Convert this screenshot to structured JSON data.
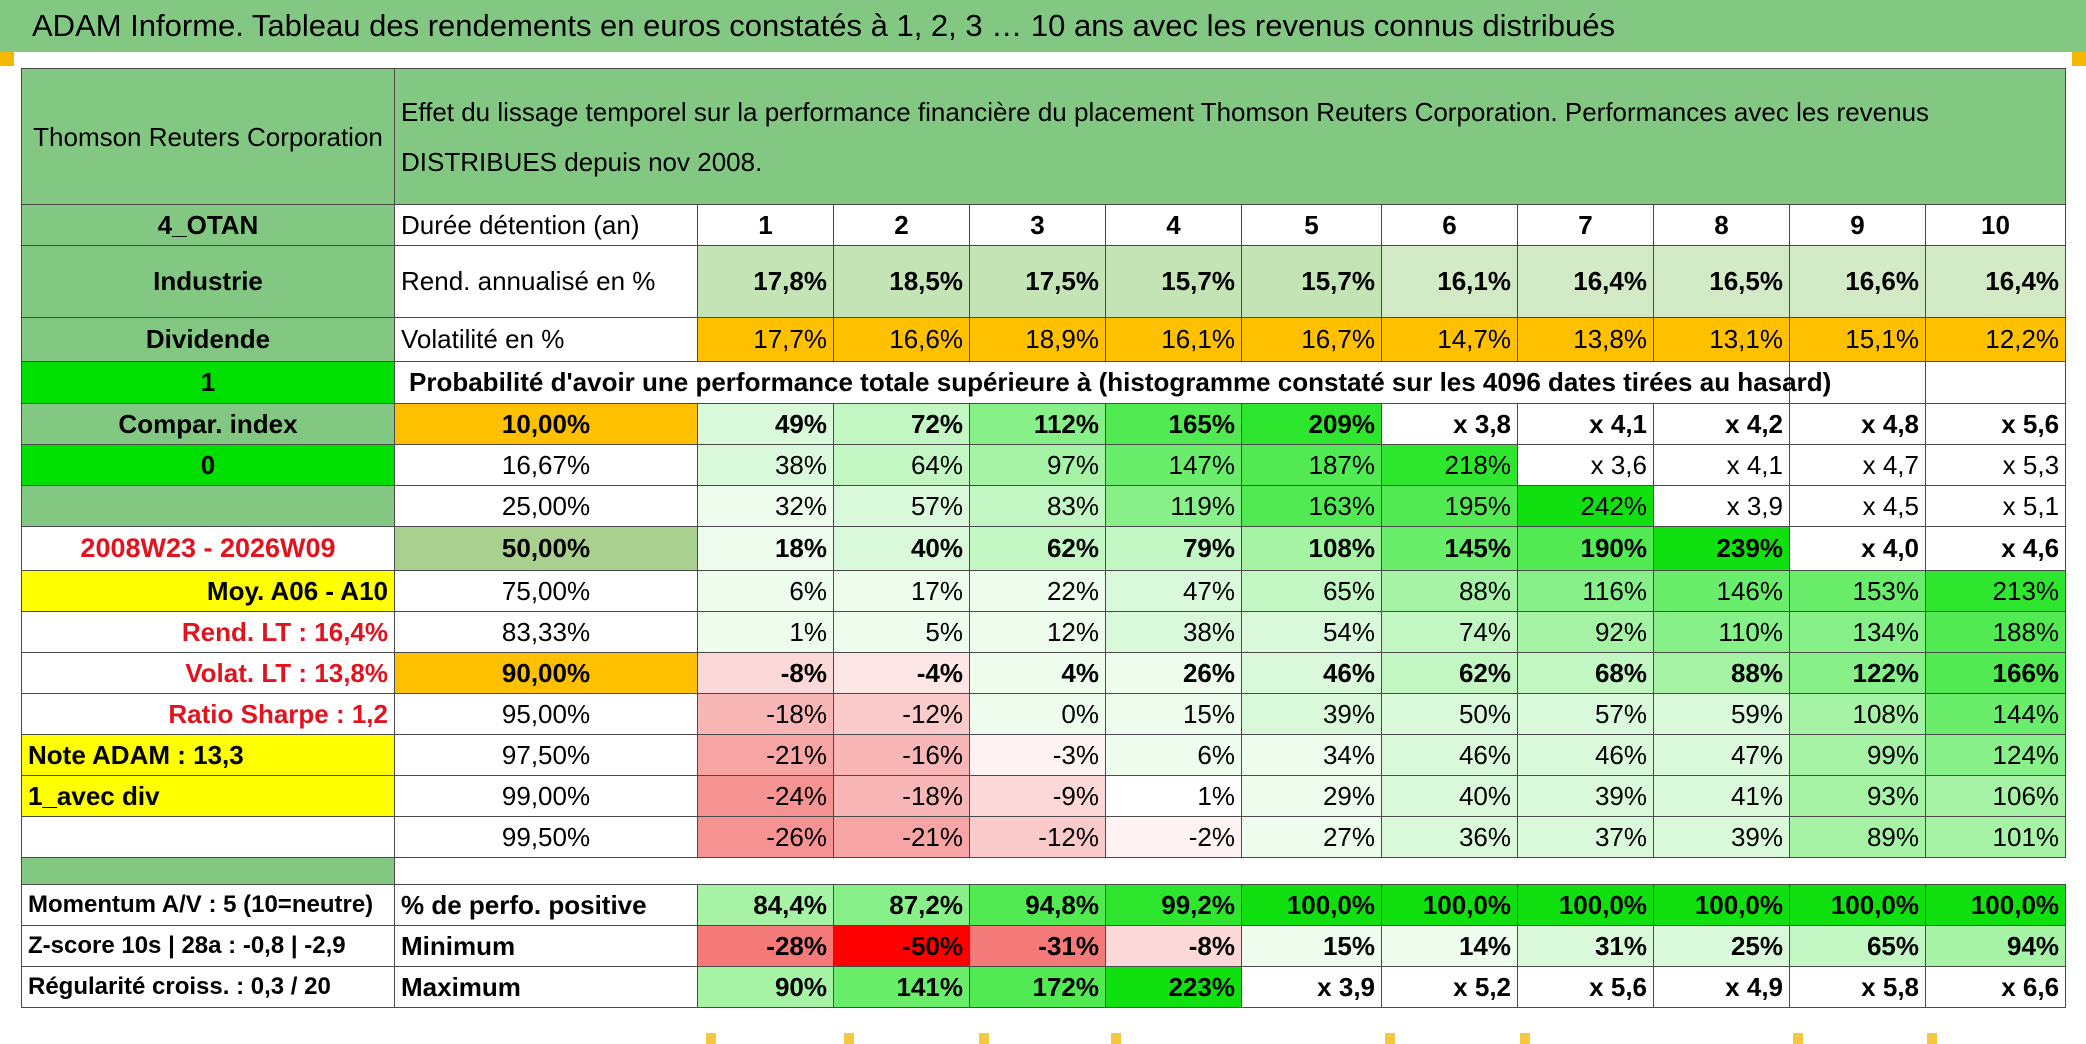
{
  "title": "ADAM Informe. Tableau des rendements en euros constatés à 1, 2, 3 … 10 ans avec les revenus connus distribués",
  "header": {
    "company": "Thomson Reuters Corporation",
    "description": "Effet du lissage temporel sur la performance financière du placement Thomson Reuters Corporation. Performances avec les revenus DISTRIBUES depuis nov 2008."
  },
  "years": [
    "1",
    "2",
    "3",
    "4",
    "5",
    "6",
    "7",
    "8",
    "9",
    "10"
  ],
  "meta_rows": [
    {
      "left": "4_OTAN",
      "label": "Durée détention (an)"
    },
    {
      "left": "Industrie",
      "label": "Rend. annualisé en %",
      "values": [
        "17,8%",
        "18,5%",
        "17,5%",
        "15,7%",
        "15,7%",
        "16,1%",
        "16,4%",
        "16,5%",
        "16,6%",
        "16,4%"
      ]
    },
    {
      "left": "Dividende",
      "label": "Volatilité en %",
      "values": [
        "17,7%",
        "16,6%",
        "18,9%",
        "16,1%",
        "16,7%",
        "14,7%",
        "13,8%",
        "13,1%",
        "15,1%",
        "12,2%"
      ]
    }
  ],
  "prob_row": {
    "left": "1",
    "label": "Probabilité d'avoir une performance totale supérieure à (histogramme constaté sur les 4096 dates tirées au hasard)"
  },
  "prob_rows": [
    {
      "left": "Compar. index",
      "pct": "10,00%",
      "values": [
        "49%",
        "72%",
        "112%",
        "165%",
        "209%",
        "x 3,8",
        "x 4,1",
        "x 4,2",
        "x 4,8",
        "x 5,6"
      ]
    },
    {
      "left": "0",
      "pct": "16,67%",
      "values": [
        "38%",
        "64%",
        "97%",
        "147%",
        "187%",
        "218%",
        "x 3,6",
        "x 4,1",
        "x 4,7",
        "x 5,3"
      ]
    },
    {
      "left": "",
      "pct": "25,00%",
      "values": [
        "32%",
        "57%",
        "83%",
        "119%",
        "163%",
        "195%",
        "242%",
        "x 3,9",
        "x 4,5",
        "x 5,1"
      ]
    },
    {
      "left": "2008W23 - 2026W09",
      "pct": "50,00%",
      "values": [
        "18%",
        "40%",
        "62%",
        "79%",
        "108%",
        "145%",
        "190%",
        "239%",
        "x 4,0",
        "x 4,6"
      ]
    },
    {
      "left": "Moy. A06 - A10",
      "pct": "75,00%",
      "values": [
        "6%",
        "17%",
        "22%",
        "47%",
        "65%",
        "88%",
        "116%",
        "146%",
        "153%",
        "213%"
      ]
    },
    {
      "left": "Rend. LT :   16,4%",
      "pct": "83,33%",
      "values": [
        "1%",
        "5%",
        "12%",
        "38%",
        "54%",
        "74%",
        "92%",
        "110%",
        "134%",
        "188%"
      ]
    },
    {
      "left": "Volat. LT :   13,8%",
      "pct": "90,00%",
      "values": [
        "-8%",
        "-4%",
        "4%",
        "26%",
        "46%",
        "62%",
        "68%",
        "88%",
        "122%",
        "166%"
      ]
    },
    {
      "left": "Ratio Sharpe :    1,2",
      "pct": "95,00%",
      "values": [
        "-18%",
        "-12%",
        "0%",
        "15%",
        "39%",
        "50%",
        "57%",
        "59%",
        "108%",
        "144%"
      ]
    },
    {
      "left": "Note ADAM : 13,3",
      "pct": "97,50%",
      "values": [
        "-21%",
        "-16%",
        "-3%",
        "6%",
        "34%",
        "46%",
        "46%",
        "47%",
        "99%",
        "124%"
      ]
    },
    {
      "left": "1_avec div",
      "pct": "99,00%",
      "values": [
        "-24%",
        "-18%",
        "-9%",
        "1%",
        "29%",
        "40%",
        "39%",
        "41%",
        "93%",
        "106%"
      ]
    },
    {
      "left": "",
      "pct": "99,50%",
      "values": [
        "-26%",
        "-21%",
        "-12%",
        "-2%",
        "27%",
        "36%",
        "37%",
        "39%",
        "89%",
        "101%"
      ]
    }
  ],
  "footer_rows": [
    {
      "left": "Momentum A/V : 5 (10=neutre)",
      "label": "% de perfo. positive",
      "values": [
        "84,4%",
        "87,2%",
        "94,8%",
        "99,2%",
        "100,0%",
        "100,0%",
        "100,0%",
        "100,0%",
        "100,0%",
        "100,0%"
      ]
    },
    {
      "left": "Z-score 10s | 28a : -0,8 | -2,9",
      "label": "Minimum",
      "values": [
        "-28%",
        "-50%",
        "-31%",
        "-8%",
        "15%",
        "14%",
        "31%",
        "25%",
        "65%",
        "94%"
      ]
    },
    {
      "left": "Régularité croiss. : 0,3 / 20",
      "label": "Maximum",
      "values": [
        "90%",
        "141%",
        "172%",
        "223%",
        "x 3,9",
        "x 5,2",
        "x 5,6",
        "x 4,9",
        "x 5,8",
        "x 6,6"
      ]
    }
  ],
  "colors": {
    "title_bg": "#82c882",
    "green_bright": "#00e000",
    "yellow": "#ffff00",
    "orange": "#ffc000",
    "red_text": "#e0141e"
  }
}
